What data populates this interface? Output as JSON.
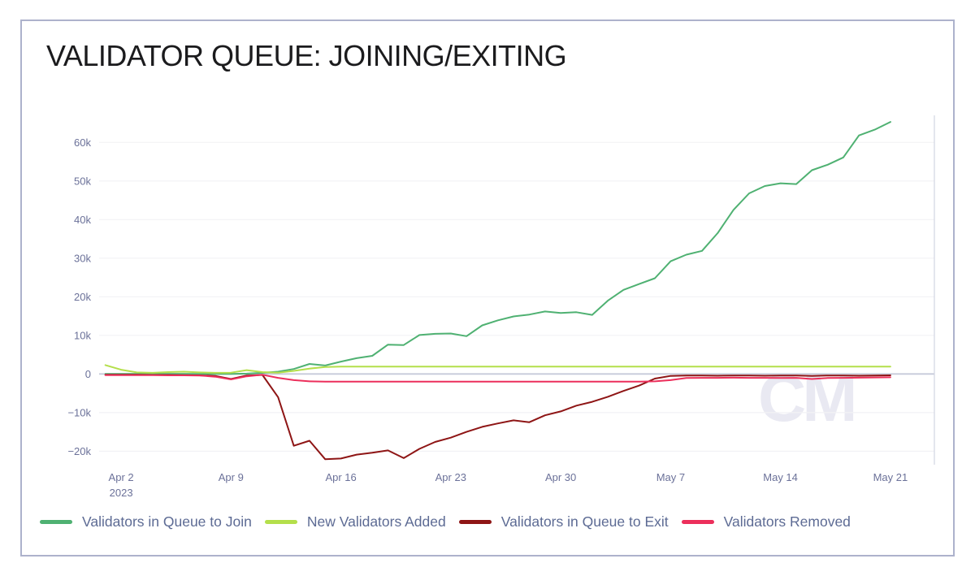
{
  "watermark": {
    "text": "CM"
  },
  "chart_data": {
    "type": "line",
    "title": "VALIDATOR QUEUE: JOINING/EXITING",
    "xlabel": "",
    "ylabel": "",
    "grid": "horizontal-only",
    "legend_position": "bottom-left",
    "x_axis": {
      "unit": "date",
      "year_label": "2023",
      "tick_days": [
        0,
        7,
        14,
        21,
        28,
        35,
        42,
        49
      ],
      "tick_labels": [
        "Apr 2",
        "Apr 9",
        "Apr 16",
        "Apr 23",
        "Apr 30",
        "May 7",
        "May 14",
        "May 21"
      ],
      "xlim_days": [
        -1.4,
        51.8
      ]
    },
    "y_axis": {
      "tick_values_k": [
        60,
        50,
        40,
        30,
        20,
        10,
        0,
        -10,
        -20
      ],
      "tick_labels": [
        "60k",
        "50k",
        "40k",
        "30k",
        "20k",
        "10k",
        "0",
        "−10k",
        "−20k"
      ],
      "ylim_k": [
        -23.5,
        67
      ],
      "grid_color": "#f2f2f5",
      "zero_line_color": "#c6cad9",
      "edge_line_color": "#d2d5e2"
    },
    "x_days": [
      -1,
      0,
      1,
      2,
      3,
      4,
      5,
      6,
      7,
      8,
      9,
      10,
      11,
      12,
      13,
      14,
      15,
      16,
      17,
      18,
      19,
      20,
      21,
      22,
      23,
      24,
      25,
      26,
      27,
      28,
      29,
      30,
      31,
      32,
      33,
      34,
      35,
      36,
      37,
      38,
      39,
      40,
      41,
      42,
      43,
      44,
      45,
      46,
      47,
      48,
      49
    ],
    "series": [
      {
        "name": "Validators in Queue to Join",
        "color": "#4fb172",
        "values_k": [
          0,
          0,
          0,
          0,
          0,
          0,
          0,
          0,
          0,
          0.1,
          0.3,
          0.6,
          1.3,
          2.6,
          2.2,
          3.2,
          4.1,
          4.7,
          7.6,
          7.5,
          10.1,
          10.4,
          10.5,
          9.8,
          12.6,
          13.9,
          14.9,
          15.4,
          16.2,
          15.8,
          16.0,
          15.3,
          19.0,
          21.8,
          23.3,
          24.8,
          29.2,
          30.9,
          31.9,
          36.5,
          42.5,
          46.8,
          48.7,
          49.4,
          49.2,
          52.8,
          54.2,
          56.1,
          61.8,
          63.3,
          65.3
        ]
      },
      {
        "name": "New Validators Added",
        "color": "#b4df4b",
        "values_k": [
          2.3,
          1.1,
          0.4,
          0.3,
          0.5,
          0.6,
          0.4,
          0.3,
          0.35,
          1.0,
          0.5,
          0.35,
          0.8,
          1.4,
          1.8,
          1.9,
          1.9,
          1.9,
          1.9,
          1.9,
          1.9,
          1.9,
          1.9,
          1.9,
          1.9,
          1.9,
          1.9,
          1.9,
          1.9,
          1.9,
          1.9,
          1.9,
          1.9,
          1.9,
          1.9,
          1.9,
          1.9,
          1.9,
          1.9,
          1.9,
          1.9,
          1.9,
          1.9,
          1.9,
          1.9,
          1.9,
          1.9,
          1.9,
          1.9,
          1.9,
          1.9
        ]
      },
      {
        "name": "Validators in Queue to Exit",
        "color": "#8e1515",
        "values_k": [
          -0.2,
          -0.2,
          -0.2,
          -0.25,
          -0.25,
          -0.3,
          -0.35,
          -0.5,
          -1.3,
          -0.4,
          -0.25,
          -6.0,
          -18.6,
          -17.3,
          -22.1,
          -21.9,
          -20.9,
          -20.4,
          -19.8,
          -21.8,
          -19.4,
          -17.6,
          -16.5,
          -15.0,
          -13.7,
          -12.8,
          -12.0,
          -12.5,
          -10.7,
          -9.7,
          -8.2,
          -7.2,
          -5.9,
          -4.4,
          -3.0,
          -1.2,
          -0.5,
          -0.4,
          -0.4,
          -0.45,
          -0.4,
          -0.4,
          -0.45,
          -0.4,
          -0.4,
          -0.5,
          -0.4,
          -0.4,
          -0.45,
          -0.4,
          -0.35
        ]
      },
      {
        "name": "Validators Removed",
        "color": "#ec2f5b",
        "values_k": [
          -0.3,
          -0.3,
          -0.3,
          -0.3,
          -0.35,
          -0.35,
          -0.4,
          -0.7,
          -1.4,
          -0.6,
          -0.2,
          -1.0,
          -1.6,
          -1.9,
          -2.0,
          -2.0,
          -2.0,
          -2.0,
          -2.0,
          -2.0,
          -2.0,
          -2.0,
          -2.0,
          -2.0,
          -2.0,
          -2.0,
          -2.0,
          -2.0,
          -2.0,
          -2.0,
          -2.0,
          -2.0,
          -2.0,
          -2.0,
          -2.0,
          -1.9,
          -1.6,
          -1.05,
          -1.0,
          -1.0,
          -0.95,
          -1.0,
          -1.0,
          -1.05,
          -1.0,
          -1.3,
          -1.05,
          -1.0,
          -0.95,
          -0.9,
          -0.85
        ]
      }
    ]
  },
  "colors": {
    "title": "#1b1b1d",
    "axis_label": "#6b7199",
    "legend_label": "#5d6b94",
    "card_border": "#adb2cc",
    "watermark": "#e9e9f2",
    "background": "#ffffff"
  }
}
